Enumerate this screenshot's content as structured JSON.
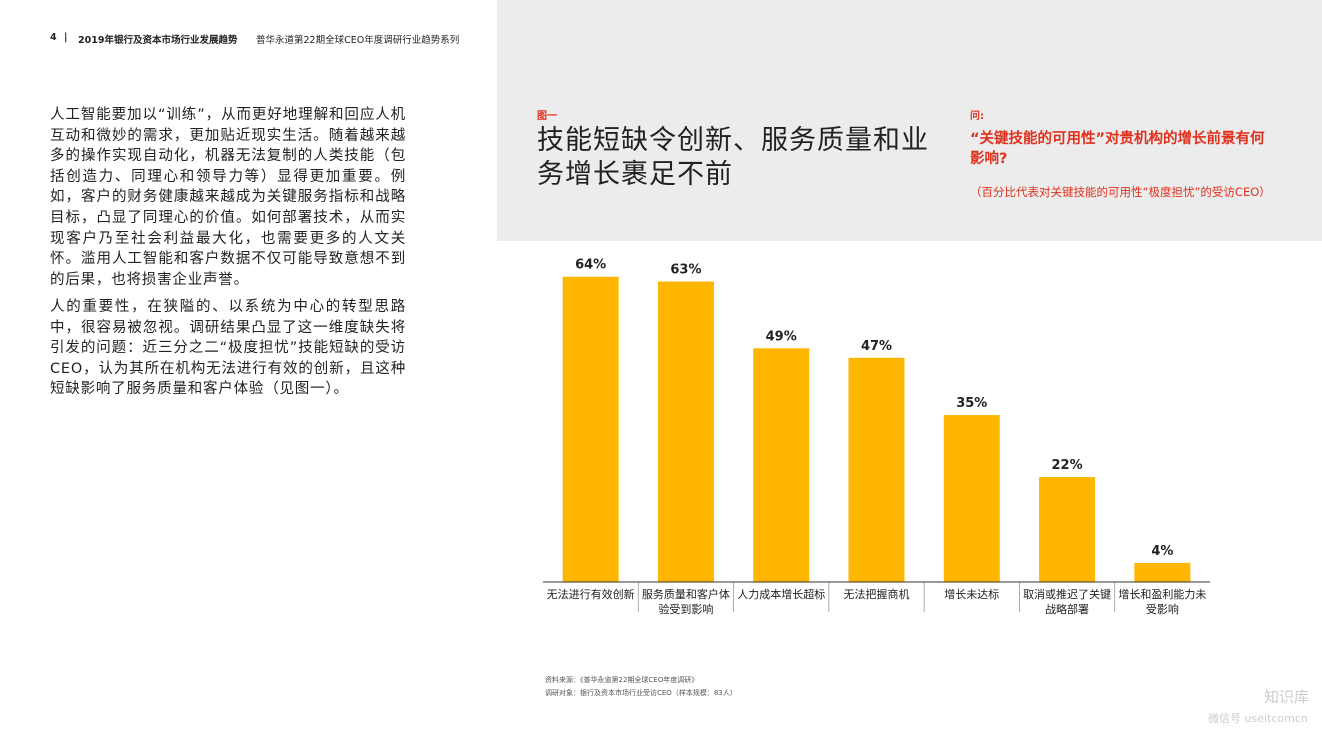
{
  "header": {
    "page_number": "4",
    "separator": "|",
    "report_title": "2019年银行及资本市场行业发展趋势",
    "series_title": "普华永道第22期全球CEO年度调研行业趋势系列"
  },
  "body": {
    "paragraphs": [
      "人工智能要加以“训练”，从而更好地理解和回应人机互动和微妙的需求，更加贴近现实生活。随着越来越多的操作实现自动化，机器无法复制的人类技能（包括创造力、同理心和领导力等）显得更加重要。例如，客户的财务健康越来越成为关键服务指标和战略目标，凸显了同理心的价值。如何部署技术，从而实现客户乃至社会利益最大化，也需要更多的人文关怀。滥用人工智能和客户数据不仅可能导致意想不到的后果，也将损害企业声誉。",
      "人的重要性，在狭隘的、以系统为中心的转型思路中，很容易被忽视。调研结果凸显了这一维度缺失将引发的问题：近三分之二“极度担忧”技能短缺的受访CEO，认为其所在机构无法进行有效的创新，且这种短缺影响了服务质量和客户体验（见图一）。"
    ]
  },
  "figure": {
    "label": "图一",
    "title": "技能短缺令创新、服务质量和业务增长裹足不前",
    "question_label": "问:",
    "question": "“关键技能的可用性”对贵机构的增长前景有何影响?",
    "question_note": "（百分比代表对关键技能的可用性“极度担忧”的受访CEO）"
  },
  "chart_data": {
    "type": "bar",
    "categories": [
      "无法进行有效创新",
      "服务质量和客户体验受到影响",
      "人力成本增长超标",
      "无法把握商机",
      "增长未达标",
      "取消或推迟了关键战略部署",
      "增长和盈利能力未受影响"
    ],
    "values": [
      64,
      63,
      49,
      47,
      35,
      22,
      4
    ],
    "value_labels": [
      "64%",
      "63%",
      "49%",
      "47%",
      "35%",
      "22%",
      "4%"
    ],
    "color": "#ffb600"
  },
  "footer": {
    "source": "资料来源：《普华永道第22期全球CEO年度调研》",
    "sample": "调研对象：银行及资本市场行业受访CEO（样本规模：83人）"
  },
  "watermark": {
    "brand": "知识库",
    "account": "微信号 useitcomcn"
  }
}
